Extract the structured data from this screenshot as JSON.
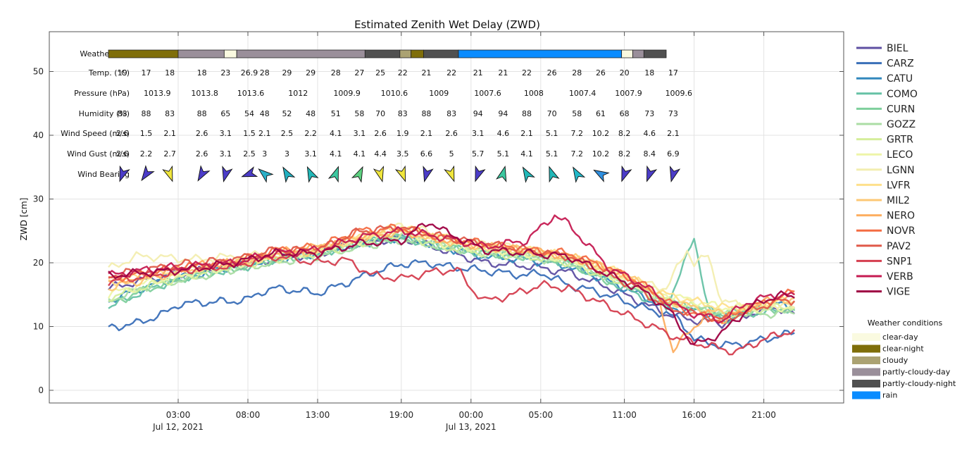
{
  "chart_data": {
    "type": "line",
    "title": "Estimated Zenith Wet Delay (ZWD)",
    "ylabel": "ZWD [cm]",
    "ylim": [
      -2,
      56
    ],
    "yticks": [
      0,
      10,
      20,
      30,
      40,
      50
    ],
    "x_range_hours": [
      -3,
      72
    ],
    "x_ticks": [
      {
        "label": "03:00",
        "sublabel": "Jul 12, 2021",
        "h": 3
      },
      {
        "label": "08:00",
        "sublabel": "",
        "h": 8
      },
      {
        "label": "13:00",
        "sublabel": "",
        "h": 13
      },
      {
        "label": "19:00",
        "sublabel": "",
        "h": 19
      },
      {
        "label": "00:00",
        "sublabel": "Jul 13, 2021",
        "h": 24
      },
      {
        "label": "05:00",
        "sublabel": "",
        "h": 29
      },
      {
        "label": "11:00",
        "sublabel": "",
        "h": 35
      },
      {
        "label": "16:00",
        "sublabel": "",
        "h": 40
      },
      {
        "label": "21:00",
        "sublabel": "",
        "h": 45
      }
    ],
    "grid": true,
    "legend_position": "right",
    "series": [
      {
        "name": "BIEL",
        "color": "#5e4fa2",
        "x": [
          -2,
          1,
          4,
          7,
          10,
          13,
          16,
          19,
          22,
          25,
          28,
          31,
          34,
          36,
          38,
          40,
          42,
          44,
          46,
          47.2
        ],
        "values": [
          16,
          17.5,
          18.5,
          19.5,
          20.5,
          21.5,
          23,
          24,
          22,
          20,
          19.5,
          18.5,
          16,
          14,
          12,
          11,
          10.5,
          12,
          13,
          12
        ]
      },
      {
        "name": "CARZ",
        "color": "#3a6fb8",
        "x": [
          -2,
          0,
          2,
          3,
          5,
          7,
          8,
          9,
          10,
          12,
          13,
          15,
          17,
          19,
          21,
          22,
          24,
          26,
          28,
          29,
          30,
          31,
          33,
          35,
          37,
          38,
          39,
          40,
          42,
          44,
          46,
          47.2
        ],
        "values": [
          9.8,
          10.5,
          12,
          13.5,
          13.8,
          14,
          14.2,
          15.5,
          16,
          15.5,
          15.2,
          16.8,
          18.5,
          19.8,
          20,
          19.5,
          19,
          18.5,
          18,
          18.5,
          17.5,
          16.5,
          15.5,
          14,
          12.5,
          12,
          11,
          8,
          7,
          7.5,
          8.5,
          9
        ]
      },
      {
        "name": "CATU",
        "color": "#3288bd",
        "x": [
          -2,
          1,
          4,
          7,
          10,
          13,
          16,
          19,
          22,
          25,
          28,
          31,
          34,
          36,
          38,
          40,
          42,
          44,
          46,
          47.2
        ],
        "values": [
          14,
          16.5,
          18,
          19.5,
          20.5,
          21.5,
          23,
          24,
          22.5,
          21,
          20.5,
          19.5,
          17,
          15,
          13,
          12.5,
          11.5,
          13,
          13.5,
          13
        ]
      },
      {
        "name": "COMO",
        "color": "#66c2a5",
        "x": [
          -2,
          1,
          4,
          7,
          10,
          13,
          16,
          19,
          22,
          25,
          28,
          31,
          34,
          36,
          38,
          39.5,
          40,
          41,
          42,
          44,
          46,
          47.2
        ],
        "values": [
          13,
          16,
          18,
          19,
          20.5,
          21.5,
          23,
          24,
          22.5,
          21.5,
          21,
          20,
          17,
          15,
          13,
          21,
          24,
          13,
          11,
          12,
          12.5,
          13
        ]
      },
      {
        "name": "CURN",
        "color": "#7ecf9c",
        "x": [
          -2,
          1,
          4,
          7,
          10,
          13,
          16,
          19,
          22,
          25,
          28,
          31,
          34,
          36,
          38,
          40,
          42,
          44,
          46,
          47.2
        ],
        "values": [
          13.5,
          16,
          18,
          19,
          20.5,
          21.5,
          23,
          24,
          22.5,
          21.5,
          21,
          20,
          17,
          16,
          14,
          13,
          12,
          12.5,
          12.8,
          12.5
        ]
      },
      {
        "name": "GOZZ",
        "color": "#abdda4",
        "x": [
          -2,
          1,
          4,
          7,
          10,
          13,
          16,
          19,
          22,
          25,
          28,
          31,
          34,
          36,
          38,
          40,
          42,
          44,
          46,
          47.2
        ],
        "values": [
          14,
          16.5,
          17.5,
          19,
          20,
          21,
          22.5,
          23.5,
          22.5,
          21.5,
          21,
          20,
          17.5,
          16,
          14,
          13,
          12,
          12,
          12,
          12
        ]
      },
      {
        "name": "GRTR",
        "color": "#d5ee9b",
        "x": [
          -2,
          1,
          4,
          7,
          10,
          13,
          16,
          19,
          22,
          25,
          28,
          31,
          34,
          36,
          38,
          40,
          42,
          44,
          46,
          47.2
        ],
        "values": [
          14.5,
          16.5,
          18,
          19.5,
          20.5,
          21.5,
          23,
          24.5,
          22.5,
          21.5,
          21,
          20,
          17.5,
          16,
          14,
          13,
          12,
          12.5,
          13,
          13
        ]
      },
      {
        "name": "LECO",
        "color": "#eef5a8",
        "x": [
          -2,
          1,
          4,
          7,
          10,
          13,
          16,
          19,
          22,
          25,
          28,
          31,
          34,
          36,
          38,
          40,
          42,
          44,
          46,
          47.2
        ],
        "values": [
          15,
          17,
          18.5,
          19.5,
          21,
          22,
          23.5,
          25,
          23,
          22,
          21.5,
          20.5,
          18,
          16.5,
          15,
          14,
          13,
          13,
          13,
          13
        ]
      },
      {
        "name": "LGNN",
        "color": "#f3eeb0",
        "x": [
          -2,
          0,
          1,
          4,
          7,
          10,
          13,
          16,
          19,
          20,
          22,
          25,
          28,
          31,
          34,
          36,
          38,
          39.5,
          40,
          41,
          42,
          44,
          46,
          47.2
        ],
        "values": [
          19,
          21,
          21,
          20.5,
          21,
          21.5,
          22,
          24,
          26,
          25.5,
          24,
          23,
          22,
          21,
          19,
          17,
          16,
          22,
          20,
          21,
          14,
          13,
          13.5,
          13
        ]
      },
      {
        "name": "LVFR",
        "color": "#fee08b",
        "x": [
          -2,
          1,
          4,
          7,
          10,
          13,
          16,
          19,
          22,
          25,
          28,
          31,
          34,
          36,
          38,
          40,
          42,
          44,
          46,
          47.2
        ],
        "values": [
          17,
          18,
          19,
          20,
          21,
          22,
          24,
          25.5,
          24,
          22.5,
          22,
          21,
          19,
          17,
          15,
          14,
          13,
          13,
          14,
          14
        ]
      },
      {
        "name": "MIL2",
        "color": "#fdc875",
        "x": [
          -2,
          1,
          4,
          7,
          10,
          13,
          16,
          19,
          22,
          25,
          28,
          31,
          34,
          36,
          38,
          40,
          42,
          44,
          46,
          47.2
        ],
        "values": [
          16,
          17.5,
          19,
          20,
          21,
          22,
          24,
          25,
          23.5,
          22.5,
          22,
          21,
          19,
          17,
          14,
          13,
          12,
          13,
          14,
          14.5
        ]
      },
      {
        "name": "NERO",
        "color": "#fdae61",
        "x": [
          -2,
          1,
          4,
          7,
          10,
          13,
          16,
          19,
          22,
          25,
          28,
          31,
          34,
          36,
          37.5,
          38.5,
          39.5,
          41,
          42,
          44,
          46,
          47.2
        ],
        "values": [
          17,
          18,
          19.5,
          20,
          21.5,
          22.5,
          24,
          25,
          23.5,
          22.5,
          22,
          21,
          19,
          17,
          14,
          6,
          9,
          12,
          11,
          13,
          14.5,
          15
        ]
      },
      {
        "name": "NOVR",
        "color": "#f46d43",
        "x": [
          -2,
          1,
          4,
          7,
          10,
          13,
          16,
          19,
          22,
          25,
          28,
          31,
          34,
          36,
          38,
          40,
          42,
          44,
          46,
          47.2
        ],
        "values": [
          17.5,
          18.5,
          19.5,
          20,
          22,
          22.5,
          25,
          25.5,
          24,
          23,
          22,
          21.5,
          19,
          17,
          14,
          12,
          11,
          13,
          14.5,
          15.5
        ]
      },
      {
        "name": "PAV2",
        "color": "#e05a4a",
        "x": [
          -2,
          1,
          4,
          7,
          10,
          13,
          16,
          19,
          22,
          25,
          28,
          31,
          34,
          36,
          38,
          40,
          42,
          44,
          46,
          47.2
        ],
        "values": [
          18,
          19,
          20,
          20.5,
          22,
          22,
          25,
          25.5,
          24,
          23,
          22,
          21,
          18,
          16,
          13,
          12,
          11,
          12.5,
          14,
          14
        ]
      },
      {
        "name": "SNP1",
        "color": "#d53e4f",
        "x": [
          -2,
          1,
          4,
          7,
          10,
          13,
          15,
          17,
          19,
          21,
          23,
          24,
          25,
          27,
          29,
          31,
          33,
          35,
          37,
          39,
          41,
          43,
          45,
          47.2
        ],
        "values": [
          17,
          18,
          19,
          19.5,
          21,
          20,
          20.5,
          18,
          17.5,
          18.5,
          19,
          16,
          14,
          15,
          16.5,
          16,
          14,
          12,
          10,
          8,
          7,
          6,
          8,
          9.5
        ]
      },
      {
        "name": "VERB",
        "color": "#c51b52",
        "x": [
          -2,
          1,
          4,
          7,
          10,
          13,
          16,
          19,
          22,
          25,
          28,
          30,
          31,
          34,
          36,
          38,
          40,
          42,
          44,
          46,
          47.2
        ],
        "values": [
          18,
          19,
          19.5,
          20,
          21.5,
          22,
          24,
          25,
          24,
          22.5,
          23.5,
          27.5,
          26,
          19,
          17,
          14,
          12,
          11,
          14,
          15,
          15
        ]
      },
      {
        "name": "VIGE",
        "color": "#9e0142",
        "x": [
          -2,
          1,
          4,
          7,
          10,
          13,
          16,
          19,
          21,
          22,
          25,
          28,
          31,
          34,
          36,
          38,
          40,
          42,
          44,
          46,
          47.2
        ],
        "values": [
          18,
          18.5,
          19,
          20,
          21.5,
          21.5,
          23,
          23.5,
          26.5,
          25,
          22,
          21.5,
          21,
          18,
          16,
          13,
          7,
          9,
          13,
          15,
          14.5
        ]
      }
    ]
  },
  "weather": {
    "row_labels": {
      "info": "Weather Info",
      "temp": "Temp. (°C)",
      "pressure": "Pressure (hPa)",
      "humidity": "Humidity (%)",
      "wind_speed": "Wind Speed (m/s)",
      "wind_gust": "Wind Gust (m/s)",
      "wind_bearing": "Wind Bearing"
    },
    "info_bar": [
      {
        "from": -2,
        "to": 3,
        "cond": "clear-night"
      },
      {
        "from": 3,
        "to": 6.3,
        "cond": "partly-cloudy-day"
      },
      {
        "from": 6.3,
        "to": 7.2,
        "cond": "clear-day"
      },
      {
        "from": 7.2,
        "to": 16.4,
        "cond": "partly-cloudy-day"
      },
      {
        "from": 16.4,
        "to": 18.9,
        "cond": "partly-cloudy-night"
      },
      {
        "from": 18.9,
        "to": 19.7,
        "cond": "cloudy"
      },
      {
        "from": 19.7,
        "to": 20.6,
        "cond": "clear-night"
      },
      {
        "from": 20.6,
        "to": 23.1,
        "cond": "partly-cloudy-night"
      },
      {
        "from": 23.1,
        "to": 34.8,
        "cond": "rain"
      },
      {
        "from": 34.8,
        "to": 35.6,
        "cond": "clear-day"
      },
      {
        "from": 35.6,
        "to": 36.4,
        "cond": "partly-cloudy-day"
      },
      {
        "from": 36.4,
        "to": 38,
        "cond": "partly-cloudy-night"
      }
    ],
    "cols_x": [
      -1,
      0.7,
      2.4,
      4.7,
      6.4,
      8.1,
      9.8,
      11.5,
      13.2,
      15.0,
      16.7,
      18.4,
      20.1,
      21.9,
      23.7,
      25.4,
      27.2,
      28.9,
      30.6,
      32.4,
      34.1,
      35.8,
      37.6
    ],
    "temp": [
      "19",
      "17",
      "18",
      "18",
      "23",
      "26.9",
      "28",
      "29",
      "29",
      "28",
      "27",
      "25",
      "22",
      "21",
      "22",
      "21",
      "21",
      "22",
      "26",
      "28",
      "26",
      "20",
      "18",
      "17"
    ],
    "temp_x": [
      -1,
      0.7,
      2.4,
      4.7,
      6.4,
      8.1,
      9.2,
      10.8,
      12.5,
      14.3,
      16.0,
      17.5,
      19.1,
      20.8,
      22.6,
      24.5,
      26.3,
      28.0,
      29.8,
      31.6,
      33.3,
      35.0,
      36.8,
      38.5
    ],
    "pressure": [
      "1013.9",
      "1013.8",
      "1013.6",
      "1012",
      "1009.9",
      "1010.6",
      "1009",
      "1007.6",
      "1008",
      "1007.4",
      "1007.9",
      "1009.6"
    ],
    "pressure_x": [
      1.5,
      4.9,
      8.2,
      11.6,
      15.1,
      18.5,
      21.7,
      25.2,
      28.5,
      32.0,
      35.3,
      38.9
    ],
    "humidity": [
      "83",
      "88",
      "83",
      "88",
      "65",
      "54",
      "48",
      "52",
      "48",
      "51",
      "58",
      "70",
      "83",
      "88",
      "83",
      "94",
      "94",
      "88",
      "70",
      "58",
      "61",
      "68",
      "73",
      "73"
    ],
    "humidity_x": [
      -1,
      0.7,
      2.4,
      4.7,
      6.4,
      8.1,
      9.2,
      10.8,
      12.5,
      14.3,
      16.0,
      17.5,
      19.1,
      20.8,
      22.6,
      24.5,
      26.3,
      28.0,
      29.8,
      31.6,
      33.3,
      35.0,
      36.8,
      38.5
    ],
    "wind_speed": [
      "2.6",
      "1.5",
      "2.1",
      "2.6",
      "3.1",
      "1.5",
      "2.1",
      "2.5",
      "2.2",
      "4.1",
      "3.1",
      "2.6",
      "1.9",
      "2.1",
      "2.6",
      "3.1",
      "4.6",
      "2.1",
      "5.1",
      "7.2",
      "10.2",
      "8.2",
      "4.6",
      "2.1"
    ],
    "wind_gust": [
      "2.6",
      "2.2",
      "2.7",
      "2.6",
      "3.1",
      "2.5",
      "3",
      "3",
      "3.1",
      "4.1",
      "4.1",
      "4.4",
      "3.5",
      "6.6",
      "5",
      "5.7",
      "5.1",
      "4.1",
      "5.1",
      "7.2",
      "10.2",
      "8.2",
      "8.4",
      "6.9"
    ],
    "wind_bearing": [
      {
        "deg": 200,
        "color": "#4b3cc8"
      },
      {
        "deg": 215,
        "color": "#4b3cc8"
      },
      {
        "deg": 160,
        "color": "#f0e63c"
      },
      {
        "deg": 210,
        "color": "#4b3cc8"
      },
      {
        "deg": 195,
        "color": "#4b3cc8"
      },
      {
        "deg": 250,
        "color": "#4b3cc8"
      },
      {
        "deg": 310,
        "color": "#2ab0c8"
      },
      {
        "deg": 330,
        "color": "#22b0c0"
      },
      {
        "deg": 335,
        "color": "#22b8b8"
      },
      {
        "deg": 20,
        "color": "#3cc8a0"
      },
      {
        "deg": 25,
        "color": "#5cd080"
      },
      {
        "deg": 165,
        "color": "#f0e63c"
      },
      {
        "deg": 160,
        "color": "#f0e63c"
      },
      {
        "deg": 195,
        "color": "#4b3cc8"
      },
      {
        "deg": 160,
        "color": "#f0e63c"
      },
      {
        "deg": 200,
        "color": "#4b3cc8"
      },
      {
        "deg": 15,
        "color": "#3cc8a0"
      },
      {
        "deg": 330,
        "color": "#22b8b8"
      },
      {
        "deg": 340,
        "color": "#22b8b8"
      },
      {
        "deg": 330,
        "color": "#22b8c8"
      },
      {
        "deg": 300,
        "color": "#3090e0"
      },
      {
        "deg": 200,
        "color": "#4b3cc8"
      },
      {
        "deg": 200,
        "color": "#4b3cc8"
      },
      {
        "deg": 195,
        "color": "#4b3cc8"
      }
    ],
    "legend_title": "Weather conditions",
    "conditions": [
      {
        "name": "clear-day",
        "color": "#fafae0"
      },
      {
        "name": "clear-night",
        "color": "#7f6e0a"
      },
      {
        "name": "cloudy",
        "color": "#aba272"
      },
      {
        "name": "partly-cloudy-day",
        "color": "#9a8f9a"
      },
      {
        "name": "partly-cloudy-night",
        "color": "#505050"
      },
      {
        "name": "rain",
        "color": "#0a8cff"
      }
    ]
  }
}
